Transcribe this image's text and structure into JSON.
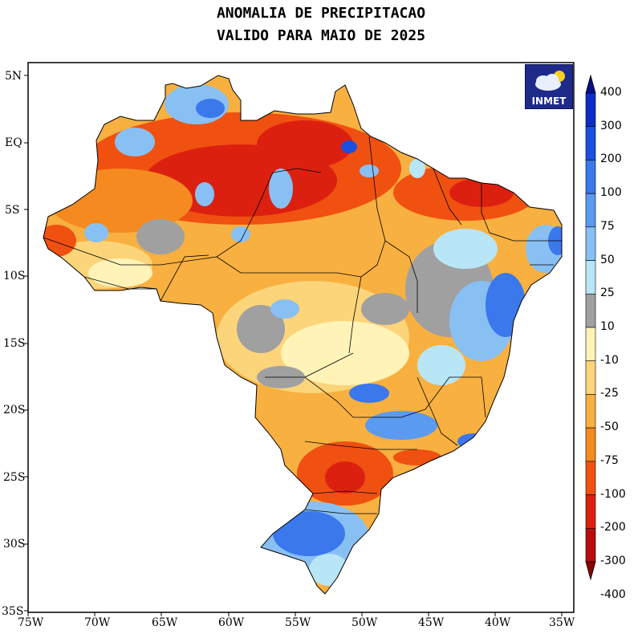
{
  "title_line1": "ANOMALIA DE PRECIPITACAO",
  "title_line2": "VALIDO PARA MAIO DE 2025",
  "logo_text": "INMET",
  "lat_ticks": [
    "5N",
    "EQ",
    "5S",
    "10S",
    "15S",
    "20S",
    "25S",
    "30S",
    "35S"
  ],
  "lon_ticks": [
    "75W",
    "70W",
    "65W",
    "60W",
    "55W",
    "50W",
    "45W",
    "40W",
    "35W"
  ],
  "colorbar": {
    "labels": [
      "400",
      "300",
      "200",
      "100",
      "75",
      "50",
      "25",
      "10",
      "-10",
      "-25",
      "-50",
      "-75",
      "-100",
      "-200",
      "-300",
      "-400"
    ],
    "colors": [
      "#08108c",
      "#0c2ec8",
      "#1a50e0",
      "#3a78ec",
      "#5a9af0",
      "#88c0f4",
      "#b8e6f6",
      "#a0a0a0",
      "#fff3b8",
      "#fcd47a",
      "#f8b040",
      "#f48a20",
      "#f05010",
      "#dc2010",
      "#b80c0c",
      "#8a0404"
    ]
  },
  "colors": {
    "background": "#ffffff",
    "map_land_base": "#f8b040"
  }
}
